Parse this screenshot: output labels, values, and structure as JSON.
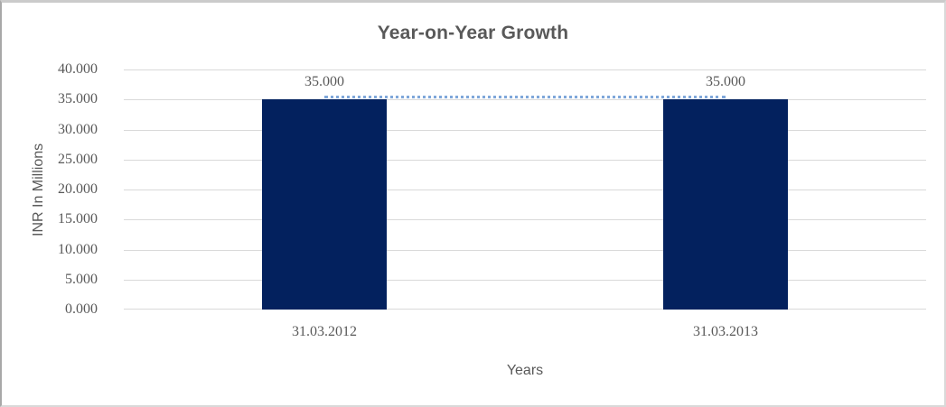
{
  "chart_data": {
    "type": "bar",
    "title": "Year-on-Year Growth",
    "categories": [
      "31.03.2012",
      "31.03.2013"
    ],
    "values": [
      35.0,
      35.0
    ],
    "data_labels": [
      "35.000",
      "35.000"
    ],
    "xlabel": "Years",
    "ylabel": "INR In Millions",
    "ylim": [
      0,
      40
    ],
    "ytick_labels": [
      "0.000",
      "5.000",
      "10.000",
      "15.000",
      "20.000",
      "25.000",
      "30.000",
      "35.000",
      "40.000"
    ],
    "grid": true,
    "legend": "none",
    "trendline": {
      "style": "dotted",
      "value": 35.0
    },
    "colors": {
      "bar": "#03215E",
      "trendline": "#7FA7DA",
      "gridline": "#D9D9D9",
      "text": "#595959"
    }
  }
}
